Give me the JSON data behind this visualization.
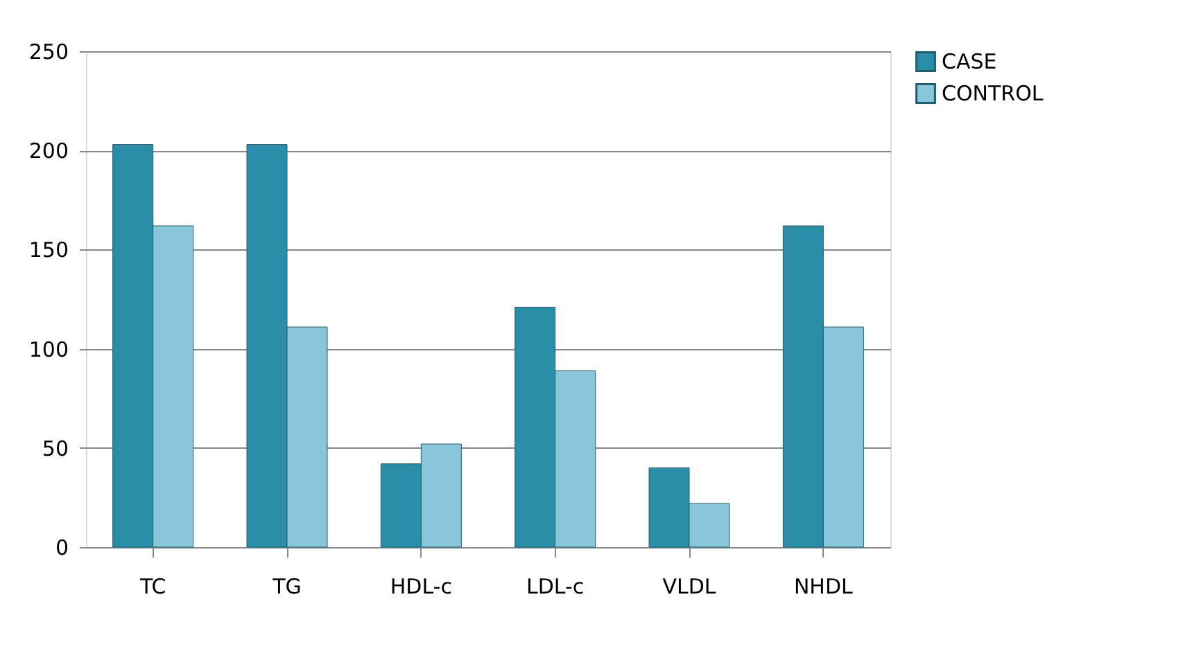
{
  "chart_data": {
    "type": "bar",
    "categories": [
      "TC",
      "TG",
      "HDL-c",
      "LDL-c",
      "VLDL",
      "NHDL"
    ],
    "series": [
      {
        "name": "CASE",
        "color": "#2a8ea8",
        "values": [
          203,
          203,
          42,
          121,
          40,
          162
        ]
      },
      {
        "name": "CONTROL",
        "color": "#8ac6da",
        "values": [
          162,
          111,
          52,
          89,
          22,
          111
        ]
      }
    ],
    "ylim": [
      0,
      250
    ],
    "yticks": [
      0,
      50,
      100,
      150,
      200,
      250
    ],
    "grid": "y",
    "legend": "right"
  }
}
